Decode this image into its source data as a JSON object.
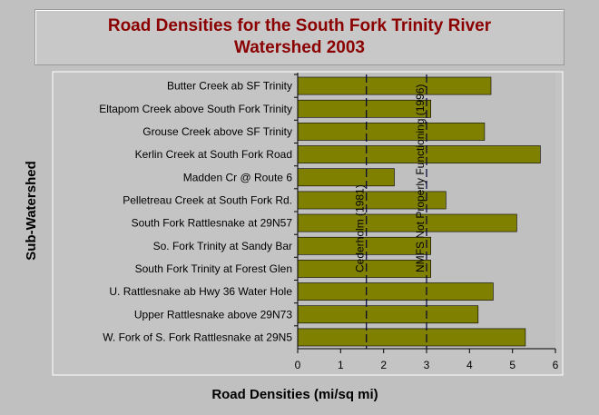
{
  "chart_data": {
    "type": "bar",
    "orientation": "horizontal",
    "title_lines": [
      "Road Densities for the South Fork Trinity River",
      "Watershed 2003"
    ],
    "xlabel": "Road Densities (mi/sq mi)",
    "ylabel": "Sub-Watershed",
    "xlim": [
      0,
      6
    ],
    "xticks": [
      "0",
      "1",
      "2",
      "3",
      "4",
      "5",
      "6"
    ],
    "grid": false,
    "bar_color": "#808000",
    "categories": [
      "Butter Creek ab SF Trinity",
      "Eltapom Creek above South Fork Trinity",
      "Grouse Creek above SF Trinity",
      "Kerlin Creek at South Fork Road",
      "Madden Cr @ Route 6",
      "Pelletreau Creek at South Fork Rd.",
      "South Fork Rattlesnake at 29N57",
      "So. Fork Trinity at Sandy Bar",
      "South Fork Trinity at Forest Glen",
      "U. Rattlesnake ab Hwy 36 Water Hole",
      "Upper Rattlesnake above 29N73",
      "W. Fork of S. Fork Rattlesnake at 29N5"
    ],
    "values": [
      4.5,
      3.1,
      4.35,
      5.65,
      2.25,
      3.45,
      5.1,
      3.1,
      3.1,
      4.55,
      4.2,
      5.3
    ],
    "reference_lines": [
      {
        "value": 1.6,
        "label": "Cederholm (1981)"
      },
      {
        "value": 3.0,
        "label": "NMFS Not Properly Functioning (1996)"
      }
    ]
  }
}
